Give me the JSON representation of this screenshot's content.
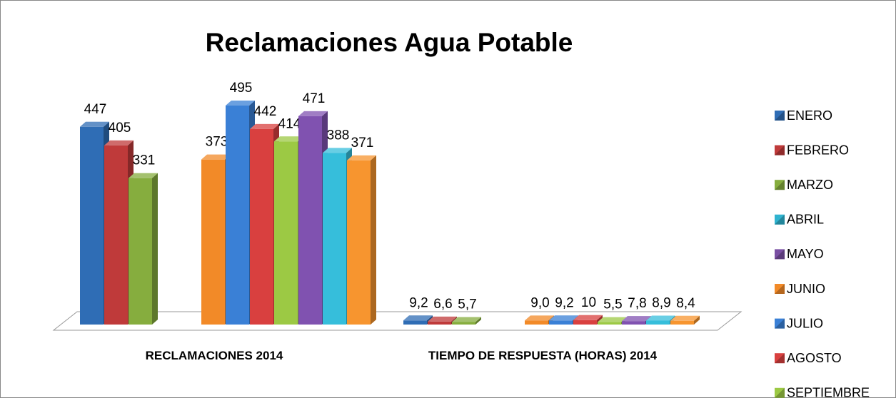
{
  "chart_data": {
    "type": "bar3d",
    "title": "Reclamaciones Agua Potable",
    "categories": [
      "RECLAMACIONES 2014",
      "TIEMPO DE RESPUESTA (HORAS) 2014"
    ],
    "series": [
      {
        "name": "ENERO",
        "color": "#2f6db5",
        "values": [
          447,
          9.2
        ],
        "value_labels": [
          "447",
          "9,2"
        ]
      },
      {
        "name": "FEBRERO",
        "color": "#bf3a3a",
        "values": [
          405,
          6.6
        ],
        "value_labels": [
          "405",
          "6,6"
        ]
      },
      {
        "name": "MARZO",
        "color": "#86ad3e",
        "values": [
          331,
          5.7
        ],
        "value_labels": [
          "331",
          "5,7"
        ]
      },
      {
        "name": "ABRIL",
        "color": "#2fb3cf",
        "values": [
          null,
          null
        ]
      },
      {
        "name": "MAYO",
        "color": "#7a4fa3",
        "values": [
          null,
          null
        ]
      },
      {
        "name": "JUNIO",
        "color": "#f28a28",
        "values": [
          373,
          9.0
        ],
        "value_labels": [
          "373",
          "9,0"
        ]
      },
      {
        "name": "JULIO",
        "color": "#3a80d6",
        "values": [
          495,
          9.2
        ],
        "value_labels": [
          "495",
          "9,2"
        ]
      },
      {
        "name": "AGOSTO",
        "color": "#d9403f",
        "values": [
          442,
          10
        ],
        "value_labels": [
          "442",
          "10"
        ]
      },
      {
        "name": "SEPTIEMBRE",
        "color": "#9cc944",
        "values": [
          414,
          5.5
        ],
        "value_labels": [
          "414",
          "5,5"
        ]
      },
      {
        "name": null,
        "color": "#8052b0",
        "values": [
          471,
          7.8
        ],
        "value_labels": [
          "471",
          "7,8"
        ]
      },
      {
        "name": null,
        "color": "#36bedb",
        "values": [
          388,
          8.9
        ],
        "value_labels": [
          "388",
          "8,9"
        ]
      },
      {
        "name": null,
        "color": "#f7952f",
        "values": [
          371,
          8.4
        ],
        "value_labels": [
          "371",
          "8,4"
        ]
      }
    ]
  }
}
